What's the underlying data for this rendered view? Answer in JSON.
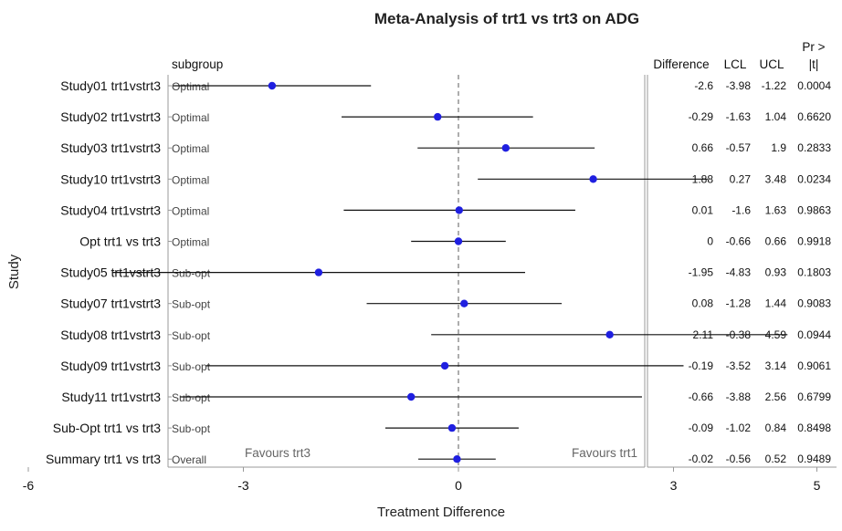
{
  "chart_data": {
    "type": "forest",
    "title": "Meta-Analysis of trt1 vs trt3 on ADG",
    "xlabel": "Treatment Difference",
    "ylabel": "Study",
    "xlim": [
      -7.5,
      5.1
    ],
    "xticks": [
      -6,
      -3,
      0,
      3,
      5
    ],
    "reference_line": 0,
    "favour_left": "Favours trt3",
    "favour_right": "Favours trt1",
    "subgroup_header": "subgroup",
    "table_headers": {
      "difference": "Difference",
      "lcl": "LCL",
      "ucl": "UCL",
      "p_line1": "Pr >",
      "p_line2": "|t|"
    },
    "marker_color": "#1f1fe0",
    "rows": [
      {
        "study": "Study01 trt1vstrt3",
        "subgroup": "Optimal",
        "diff": -2.6,
        "lcl": -3.98,
        "ucl": -1.22,
        "p": "0.0004",
        "diff_label": "-2.6",
        "lcl_label": "-3.98",
        "ucl_label": "-1.22"
      },
      {
        "study": "Study02 trt1vstrt3",
        "subgroup": "Optimal",
        "diff": -0.29,
        "lcl": -1.63,
        "ucl": 1.04,
        "p": "0.6620",
        "diff_label": "-0.29",
        "lcl_label": "-1.63",
        "ucl_label": "1.04"
      },
      {
        "study": "Study03 trt1vstrt3",
        "subgroup": "Optimal",
        "diff": 0.66,
        "lcl": -0.57,
        "ucl": 1.9,
        "p": "0.2833",
        "diff_label": "0.66",
        "lcl_label": "-0.57",
        "ucl_label": "1.9"
      },
      {
        "study": "Study10 trt1vstrt3",
        "subgroup": "Optimal",
        "diff": 1.88,
        "lcl": 0.27,
        "ucl": 3.48,
        "p": "0.0234",
        "diff_label": "1.88",
        "lcl_label": "0.27",
        "ucl_label": "3.48"
      },
      {
        "study": "Study04 trt1vstrt3",
        "subgroup": "Optimal",
        "diff": 0.01,
        "lcl": -1.6,
        "ucl": 1.63,
        "p": "0.9863",
        "diff_label": "0.01",
        "lcl_label": "-1.6",
        "ucl_label": "1.63"
      },
      {
        "study": "Opt trt1 vs trt3",
        "subgroup": "Optimal",
        "diff": 0,
        "lcl": -0.66,
        "ucl": 0.66,
        "p": "0.9918",
        "diff_label": "0",
        "lcl_label": "-0.66",
        "ucl_label": "0.66"
      },
      {
        "study": "Study05 trt1vstrt3",
        "subgroup": "Sub-opt",
        "diff": -1.95,
        "lcl": -4.83,
        "ucl": 0.93,
        "p": "0.1803",
        "diff_label": "-1.95",
        "lcl_label": "-4.83",
        "ucl_label": "0.93"
      },
      {
        "study": "Study07 trt1vstrt3",
        "subgroup": "Sub-opt",
        "diff": 0.08,
        "lcl": -1.28,
        "ucl": 1.44,
        "p": "0.9083",
        "diff_label": "0.08",
        "lcl_label": "-1.28",
        "ucl_label": "1.44"
      },
      {
        "study": "Study08 trt1vstrt3",
        "subgroup": "Sub-opt",
        "diff": 2.11,
        "lcl": -0.38,
        "ucl": 4.59,
        "p": "0.0944",
        "diff_label": "2.11",
        "lcl_label": "-0.38",
        "ucl_label": "4.59"
      },
      {
        "study": "Study09 trt1vstrt3",
        "subgroup": "Sub-opt",
        "diff": -0.19,
        "lcl": -3.52,
        "ucl": 3.14,
        "p": "0.9061",
        "diff_label": "-0.19",
        "lcl_label": "-3.52",
        "ucl_label": "3.14"
      },
      {
        "study": "Study11 trt1vstrt3",
        "subgroup": "Sub-opt",
        "diff": -0.66,
        "lcl": -3.88,
        "ucl": 2.56,
        "p": "0.6799",
        "diff_label": "-0.66",
        "lcl_label": "-3.88",
        "ucl_label": "2.56"
      },
      {
        "study": "Sub-Opt trt1 vs trt3",
        "subgroup": "Sub-opt",
        "diff": -0.09,
        "lcl": -1.02,
        "ucl": 0.84,
        "p": "0.8498",
        "diff_label": "-0.09",
        "lcl_label": "-1.02",
        "ucl_label": "0.84"
      },
      {
        "study": "Summary trt1 vs trt3",
        "subgroup": "Overall",
        "diff": -0.02,
        "lcl": -0.56,
        "ucl": 0.52,
        "p": "0.9489",
        "diff_label": "-0.02",
        "lcl_label": "-0.56",
        "ucl_label": "0.52"
      }
    ]
  }
}
